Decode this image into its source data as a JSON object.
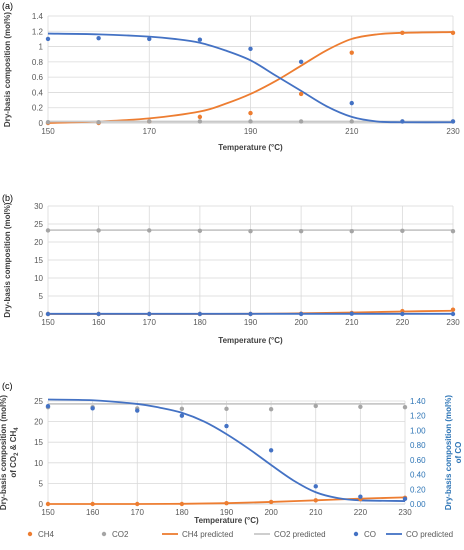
{
  "chart_data": [
    {
      "panel": "(a)",
      "type": "scatter",
      "xlabel": "Temperature (°C)",
      "ylabel": "Dry-basis composition (mol%)",
      "xlim": [
        150,
        230
      ],
      "ylim": [
        0,
        1.4
      ],
      "xticks": [
        "150",
        "170",
        "190",
        "210",
        "230"
      ],
      "yticks": [
        "0",
        "0.2",
        "0.4",
        "0.6",
        "0.8",
        "1",
        "1.2",
        "1.4"
      ],
      "grid": true,
      "series": [
        {
          "name": "CH4",
          "kind": "points",
          "color": "#ed7d31",
          "x": [
            150,
            160,
            170,
            180,
            190,
            200,
            210,
            220,
            230
          ],
          "y": [
            0,
            0,
            0.02,
            0.08,
            0.13,
            0.38,
            0.92,
            1.18,
            1.18
          ]
        },
        {
          "name": "CO2",
          "kind": "points",
          "color": "#a5a5a5",
          "x": [
            150,
            160,
            170,
            180,
            190,
            200,
            210,
            220,
            230
          ],
          "y": [
            0.01,
            0.01,
            0.02,
            0.02,
            0.02,
            0.02,
            0.02,
            0.02,
            0.02
          ]
        },
        {
          "name": "CO",
          "kind": "points",
          "color": "#4472c4",
          "x": [
            150,
            160,
            170,
            180,
            190,
            200,
            210,
            220,
            230
          ],
          "y": [
            1.1,
            1.11,
            1.1,
            1.09,
            0.97,
            0.8,
            0.26,
            0.02,
            0.02
          ]
        },
        {
          "name": "CH4 predicted",
          "kind": "line",
          "color": "#ed7d31",
          "x": [
            150,
            160,
            170,
            180,
            185,
            190,
            195,
            200,
            205,
            210,
            215,
            220,
            230
          ],
          "y": [
            0,
            0.02,
            0.06,
            0.15,
            0.25,
            0.38,
            0.55,
            0.75,
            0.95,
            1.1,
            1.16,
            1.18,
            1.19
          ]
        },
        {
          "name": "CO2 predicted",
          "kind": "line",
          "color": "#c9c9c9",
          "x": [
            150,
            230
          ],
          "y": [
            0.02,
            0.02
          ]
        },
        {
          "name": "CO predicted",
          "kind": "line",
          "color": "#4472c4",
          "x": [
            150,
            160,
            170,
            175,
            180,
            185,
            190,
            195,
            200,
            205,
            210,
            215,
            220,
            230
          ],
          "y": [
            1.17,
            1.16,
            1.13,
            1.1,
            1.05,
            0.95,
            0.82,
            0.62,
            0.42,
            0.22,
            0.08,
            0.02,
            0.01,
            0.01
          ]
        }
      ]
    },
    {
      "panel": "(b)",
      "type": "scatter",
      "xlabel": "Temperature (°C)",
      "ylabel": "Dry-basis composition (mol%)",
      "xlim": [
        150,
        230
      ],
      "ylim": [
        0,
        30
      ],
      "xticks": [
        "150",
        "160",
        "170",
        "180",
        "190",
        "200",
        "210",
        "220",
        "230"
      ],
      "yticks": [
        "0",
        "5",
        "10",
        "15",
        "20",
        "25",
        "30"
      ],
      "grid": true,
      "series": [
        {
          "name": "CH4",
          "kind": "points",
          "color": "#ed7d31",
          "x": [
            150,
            160,
            170,
            180,
            190,
            200,
            210,
            220,
            230
          ],
          "y": [
            0,
            0,
            0,
            0,
            0,
            0.1,
            0.3,
            0.8,
            1.2
          ]
        },
        {
          "name": "CO2",
          "kind": "points",
          "color": "#a5a5a5",
          "x": [
            150,
            160,
            170,
            180,
            190,
            200,
            210,
            220,
            230
          ],
          "y": [
            23.2,
            23.2,
            23.2,
            23.1,
            23,
            23,
            23,
            23.1,
            23
          ]
        },
        {
          "name": "CO",
          "kind": "points",
          "color": "#4472c4",
          "x": [
            150,
            160,
            170,
            180,
            190,
            200,
            210,
            220,
            230
          ],
          "y": [
            0,
            0,
            0,
            0,
            0,
            0,
            0.1,
            0,
            0
          ]
        },
        {
          "name": "CH4 predicted",
          "kind": "line",
          "color": "#ed7d31",
          "x": [
            150,
            170,
            190,
            200,
            210,
            220,
            230
          ],
          "y": [
            0,
            0,
            0.05,
            0.2,
            0.4,
            0.7,
            0.9
          ]
        },
        {
          "name": "CO2 predicted",
          "kind": "line",
          "color": "#c9c9c9",
          "x": [
            150,
            230
          ],
          "y": [
            23.3,
            23.3
          ]
        },
        {
          "name": "CO predicted",
          "kind": "line",
          "color": "#4472c4",
          "x": [
            150,
            230
          ],
          "y": [
            0.05,
            0.05
          ]
        }
      ]
    },
    {
      "panel": "(c)",
      "type": "scatter",
      "xlabel": "Temperature (°C)",
      "ylabel": "Dry-basis composition (mol%) of CO2 & CH4",
      "ylabel_right": "Dry-basis composition (mol%) of CO",
      "xlim": [
        150,
        230
      ],
      "ylim": [
        0,
        25
      ],
      "ylim_right": [
        0,
        1.4
      ],
      "xticks": [
        "150",
        "160",
        "170",
        "180",
        "190",
        "200",
        "210",
        "220",
        "230"
      ],
      "yticks": [
        "0",
        "5",
        "10",
        "15",
        "20",
        "25"
      ],
      "yticks_right": [
        "0.00",
        "0.20",
        "0.40",
        "0.60",
        "0.80",
        "1.00",
        "1.20",
        "1.40"
      ],
      "grid": true,
      "series": [
        {
          "name": "CH4",
          "kind": "points",
          "axis": "left",
          "color": "#ed7d31",
          "x": [
            150,
            160,
            170,
            180,
            190,
            200,
            210,
            220,
            230
          ],
          "y": [
            0,
            0,
            0,
            0,
            0.2,
            0.5,
            0.9,
            1.2,
            1.5
          ]
        },
        {
          "name": "CO2",
          "kind": "points",
          "axis": "left",
          "color": "#a5a5a5",
          "x": [
            150,
            160,
            170,
            180,
            190,
            200,
            210,
            220,
            230
          ],
          "y": [
            23.5,
            23.5,
            23.2,
            23.1,
            23.1,
            23,
            23.8,
            23.6,
            23.5
          ]
        },
        {
          "name": "CO",
          "kind": "points",
          "axis": "right",
          "color": "#4472c4",
          "x": [
            150,
            160,
            170,
            180,
            190,
            200,
            210,
            220,
            230
          ],
          "y": [
            1.33,
            1.3,
            1.27,
            1.2,
            1.06,
            0.73,
            0.24,
            0.1,
            0.07
          ]
        },
        {
          "name": "CH4 predicted",
          "kind": "line",
          "axis": "left",
          "color": "#ed7d31",
          "x": [
            150,
            170,
            180,
            190,
            200,
            210,
            220,
            230
          ],
          "y": [
            0,
            0,
            0.05,
            0.2,
            0.5,
            0.9,
            1.3,
            1.6
          ]
        },
        {
          "name": "CO2 predicted",
          "kind": "line",
          "axis": "left",
          "color": "#c9c9c9",
          "x": [
            150,
            230
          ],
          "y": [
            24.3,
            24.3
          ]
        },
        {
          "name": "CO predicted",
          "kind": "line",
          "axis": "right",
          "color": "#4472c4",
          "x": [
            150,
            160,
            170,
            175,
            180,
            185,
            190,
            195,
            200,
            205,
            210,
            215,
            220,
            230
          ],
          "y": [
            1.42,
            1.41,
            1.36,
            1.31,
            1.24,
            1.12,
            0.95,
            0.75,
            0.53,
            0.32,
            0.16,
            0.08,
            0.05,
            0.04
          ]
        }
      ]
    }
  ],
  "legend": [
    {
      "label": "CH4",
      "kind": "point",
      "color": "#ed7d31"
    },
    {
      "label": "CO2",
      "kind": "point",
      "color": "#a5a5a5"
    },
    {
      "label": "CH4  predicted",
      "kind": "line",
      "color": "#ed7d31"
    },
    {
      "label": "CO2  predicted",
      "kind": "line",
      "color": "#c9c9c9"
    },
    {
      "label": "CO",
      "kind": "point",
      "color": "#4472c4"
    },
    {
      "label": "CO predicted",
      "kind": "line",
      "color": "#4472c4"
    }
  ]
}
